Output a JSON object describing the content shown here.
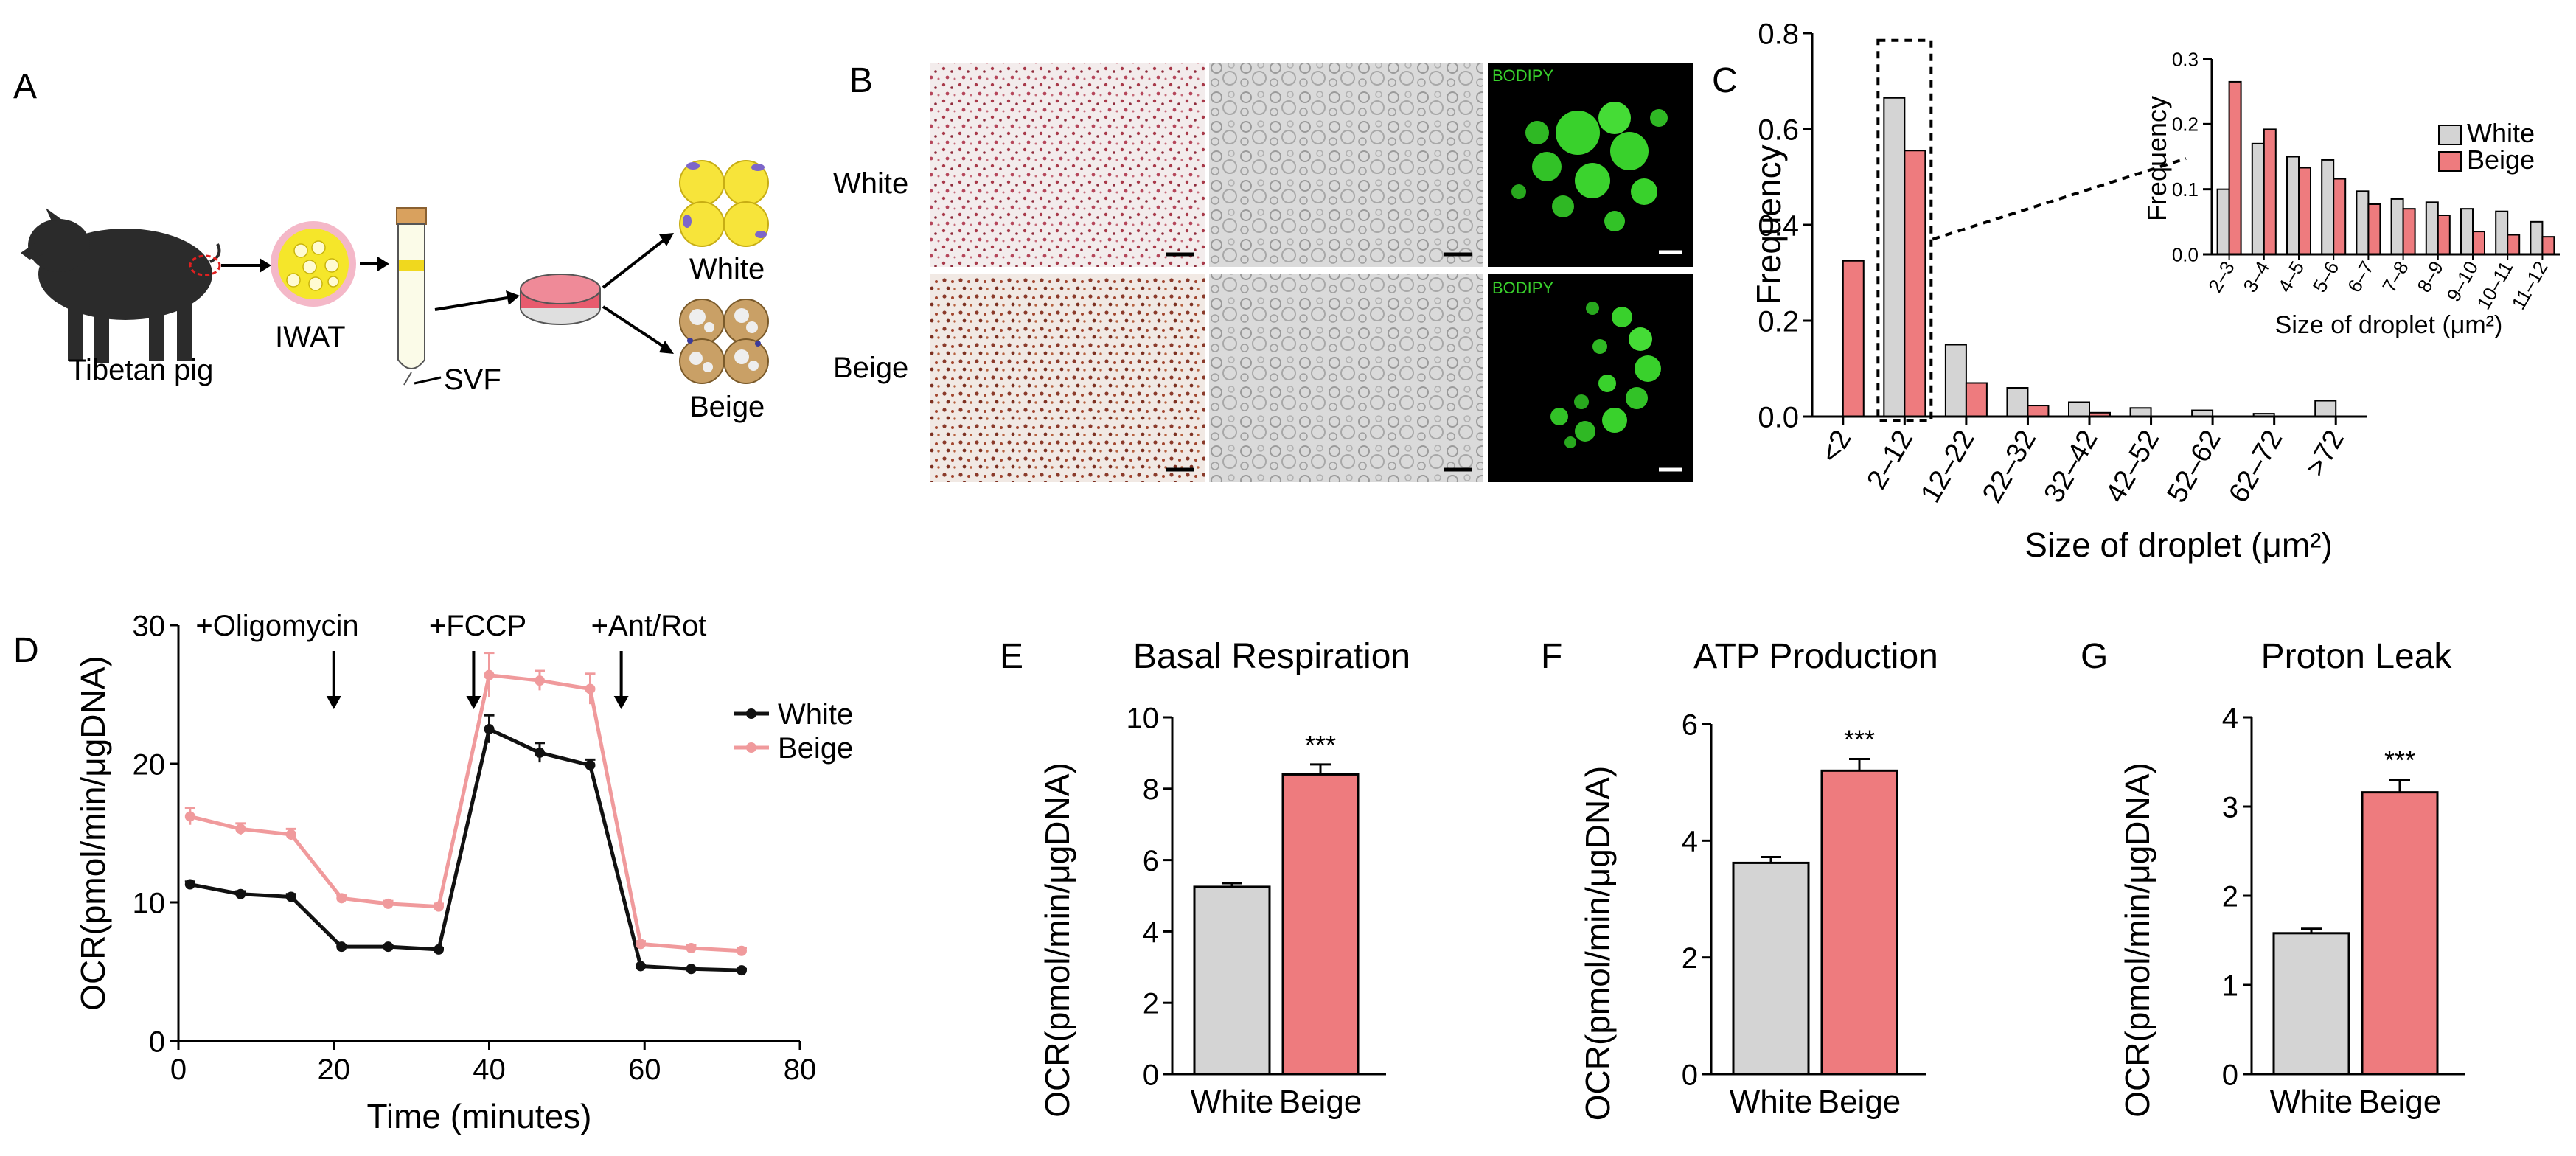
{
  "colors": {
    "white_series": "#d4d4d4",
    "beige_series": "#ee7b7e",
    "beige_line": "#f09a9c",
    "axis": "#000000",
    "pig": "#2b2b2b",
    "iwat_fill": "#f5e62a",
    "iwat_ring": "#f4b8c8",
    "bodipy": "#39d12c"
  },
  "panels": {
    "A": {
      "letter": "A",
      "labels": {
        "pig": "Tibetan pig",
        "iwat": "IWAT",
        "svf": "SVF",
        "white": "White",
        "beige": "Beige"
      },
      "icons": [
        "pig-icon",
        "iwat-dish-icon",
        "tube-icon",
        "culture-dish-icon",
        "white-adipocyte-icon",
        "beige-adipocyte-icon"
      ]
    },
    "B": {
      "letter": "B",
      "rows": [
        "White",
        "Beige"
      ],
      "stain_label": "BODIPY",
      "columns": [
        "oil-red-o",
        "brightfield",
        "bodipy-fluorescence"
      ]
    }
  },
  "chart_data": [
    {
      "id": "C",
      "letter": "C",
      "type": "bar",
      "ylabel": "Frequency",
      "xlabel": "Size of droplet (μm²)",
      "categories": [
        "<2",
        "2–12",
        "12–22",
        "22–32",
        "32–42",
        "42–52",
        "52–62",
        "62–72",
        ">72"
      ],
      "ylim": [
        0,
        0.8
      ],
      "yticks": [
        "0.0",
        "0.2",
        "0.4",
        "0.6",
        "0.8"
      ],
      "series": [
        {
          "name": "White",
          "values": [
            0.0,
            0.665,
            0.15,
            0.06,
            0.03,
            0.018,
            0.013,
            0.006,
            0.033
          ]
        },
        {
          "name": "Beige",
          "values": [
            0.325,
            0.555,
            0.07,
            0.023,
            0.008,
            0.0,
            0.0,
            0.0,
            0.0
          ]
        }
      ],
      "highlight": "2–12",
      "inset": {
        "type": "bar",
        "ylabel": "Frequency",
        "xlabel": "Size of droplet (μm²)",
        "categories": [
          "2–3",
          "3–4",
          "4–5",
          "5–6",
          "6–7",
          "7–8",
          "8–9",
          "9–10",
          "10–11",
          "11–12"
        ],
        "ylim": [
          0,
          0.3
        ],
        "yticks": [
          "0.0",
          "0.1",
          "0.2",
          "0.3"
        ],
        "series": [
          {
            "name": "White",
            "values": [
              0.1,
              0.17,
              0.15,
              0.145,
              0.097,
              0.085,
              0.08,
              0.07,
              0.066,
              0.05
            ]
          },
          {
            "name": "Beige",
            "values": [
              0.265,
              0.192,
              0.133,
              0.116,
              0.077,
              0.07,
              0.06,
              0.035,
              0.03,
              0.027
            ]
          }
        ],
        "legend": [
          "White",
          "Beige"
        ]
      }
    },
    {
      "id": "D",
      "letter": "D",
      "type": "line",
      "ylabel": "OCR(pmol/min/μgDNA)",
      "xlabel": "Time (minutes)",
      "xlim": [
        0,
        80
      ],
      "ylim": [
        0,
        30
      ],
      "xticks": [
        "0",
        "20",
        "40",
        "60",
        "80"
      ],
      "yticks": [
        "0",
        "10",
        "20",
        "30"
      ],
      "x": [
        1.5,
        8,
        14.5,
        21,
        27,
        33.5,
        40,
        46.5,
        53,
        59.5,
        66,
        72.5
      ],
      "series": [
        {
          "name": "White",
          "values": [
            11.3,
            10.6,
            10.4,
            6.8,
            6.8,
            6.6,
            22.5,
            20.8,
            19.9,
            5.4,
            5.2,
            5.1
          ],
          "errors": [
            0.2,
            0.2,
            0.2,
            0.1,
            0.1,
            0.1,
            1.0,
            0.7,
            0.4,
            0.1,
            0.1,
            0.1
          ]
        },
        {
          "name": "Beige",
          "values": [
            16.2,
            15.3,
            14.9,
            10.3,
            9.9,
            9.7,
            26.4,
            26.0,
            25.4,
            7.0,
            6.7,
            6.5
          ],
          "errors": [
            0.6,
            0.4,
            0.4,
            0.2,
            0.2,
            0.2,
            1.6,
            0.7,
            1.1,
            0.2,
            0.2,
            0.2
          ]
        }
      ],
      "annotations": [
        {
          "label": "+Oligomycin",
          "x": 20
        },
        {
          "label": "+FCCP",
          "x": 38
        },
        {
          "label": "+Ant/Rot",
          "x": 57
        }
      ],
      "legend": [
        "White",
        "Beige"
      ]
    },
    {
      "id": "E",
      "letter": "E",
      "type": "bar",
      "title": "Basal Respiration",
      "ylabel": "OCR(pmol/min/μgDNA)",
      "categories": [
        "White",
        "Beige"
      ],
      "values": [
        5.25,
        8.4
      ],
      "errors": [
        0.1,
        0.28
      ],
      "ylim": [
        0,
        10
      ],
      "yticks": [
        "0",
        "2",
        "4",
        "6",
        "8",
        "10"
      ],
      "significance": "***"
    },
    {
      "id": "F",
      "letter": "F",
      "type": "bar",
      "title": "ATP Production",
      "ylabel": "OCR(pmol/min/μgDNA)",
      "categories": [
        "White",
        "Beige"
      ],
      "values": [
        3.62,
        5.2
      ],
      "errors": [
        0.1,
        0.2
      ],
      "ylim": [
        0,
        6
      ],
      "yticks": [
        "0",
        "2",
        "4",
        "6"
      ],
      "significance": "***"
    },
    {
      "id": "G",
      "letter": "G",
      "type": "bar",
      "title": "Proton Leak",
      "ylabel": "OCR(pmol/min/μgDNA)",
      "categories": [
        "White",
        "Beige"
      ],
      "values": [
        1.58,
        3.16
      ],
      "errors": [
        0.05,
        0.14
      ],
      "ylim": [
        0,
        4
      ],
      "yticks": [
        "0",
        "1",
        "2",
        "3",
        "4"
      ],
      "significance": "***"
    }
  ]
}
